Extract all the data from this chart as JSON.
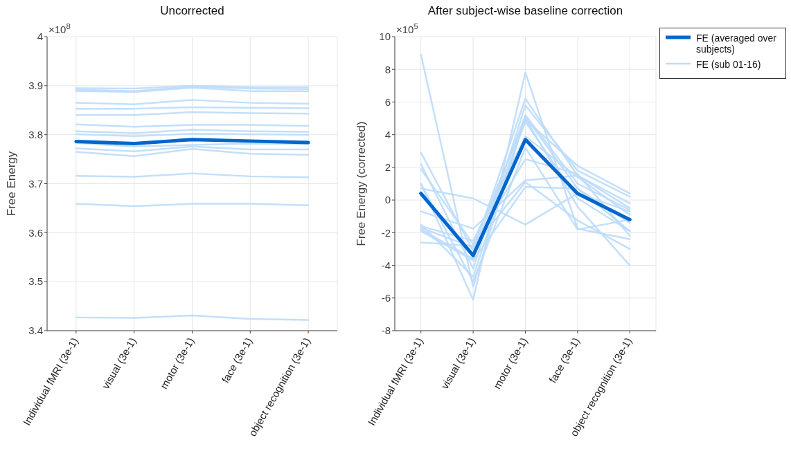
{
  "chart_data": [
    {
      "type": "line",
      "title": "Uncorrected",
      "ylabel": "Free Energy",
      "annotations": [
        "×10$^{8}$"
      ],
      "categories": [
        "Individual fMRI (3e-1)",
        "visual (3e-1)",
        "motor (3e-1)",
        "face (3e-1)",
        "object recognition (3e-1)"
      ],
      "ylim": [
        3.4,
        4
      ],
      "yticks": [
        3.4,
        3.5,
        3.6,
        3.7,
        3.8,
        3.9,
        4
      ],
      "grid": true,
      "series": [
        {
          "color": "#bcdcfa",
          "values": [
            3.895,
            3.894,
            3.9,
            3.897,
            3.897
          ]
        },
        {
          "color": "#bcdcfa",
          "values": [
            3.892,
            3.889,
            3.898,
            3.894,
            3.893
          ]
        },
        {
          "color": "#bcdcfa",
          "values": [
            3.889,
            3.887,
            3.896,
            3.889,
            3.889
          ]
        },
        {
          "color": "#bcdcfa",
          "values": [
            3.865,
            3.862,
            3.871,
            3.865,
            3.863
          ]
        },
        {
          "color": "#bcdcfa",
          "values": [
            3.853,
            3.853,
            3.856,
            3.855,
            3.854
          ]
        },
        {
          "color": "#bcdcfa",
          "values": [
            3.84,
            3.84,
            3.846,
            3.844,
            3.843
          ]
        },
        {
          "color": "#bcdcfa",
          "values": [
            3.821,
            3.816,
            3.82,
            3.82,
            3.818
          ]
        },
        {
          "color": "#bcdcfa",
          "values": [
            3.807,
            3.803,
            3.81,
            3.807,
            3.806
          ]
        },
        {
          "color": "#bcdcfa",
          "values": [
            3.801,
            3.797,
            3.802,
            3.801,
            3.8
          ]
        },
        {
          "color": "#bcdcfa",
          "values": [
            3.783,
            3.776,
            3.779,
            3.782,
            3.781
          ]
        },
        {
          "color": "#bcdcfa",
          "values": [
            3.772,
            3.766,
            3.776,
            3.77,
            3.77
          ]
        },
        {
          "color": "#bcdcfa",
          "values": [
            3.765,
            3.756,
            3.771,
            3.761,
            3.759
          ]
        },
        {
          "color": "#bcdcfa",
          "values": [
            3.716,
            3.714,
            3.721,
            3.715,
            3.713
          ]
        },
        {
          "color": "#bcdcfa",
          "values": [
            3.659,
            3.654,
            3.659,
            3.659,
            3.656
          ]
        },
        {
          "color": "#bcdcfa",
          "values": [
            3.427,
            3.426,
            3.431,
            3.424,
            3.422
          ]
        },
        {
          "color": "#0066cc",
          "values": [
            3.786,
            3.782,
            3.79,
            3.787,
            3.784
          ]
        }
      ]
    },
    {
      "type": "line",
      "title": "After subject-wise baseline correction",
      "ylabel": "Free Energy (corrected)",
      "annotations": [
        "×10$^{5}$"
      ],
      "categories": [
        "Individual fMRI (3e-1)",
        "visual (3e-1)",
        "motor (3e-1)",
        "face (3e-1)",
        "object recognition (3e-1)"
      ],
      "ylim": [
        -8,
        10
      ],
      "yticks": [
        -8,
        -6,
        -4,
        -2,
        0,
        2,
        4,
        6,
        8,
        10
      ],
      "grid": true,
      "legend": "right",
      "series": [
        {
          "name": "FE (sub 01-16)",
          "color": "#bcdcfa",
          "values": [
            8.9,
            -5.3,
            5.1,
            0.7,
            -1.9
          ]
        },
        {
          "color": "#bcdcfa",
          "values": [
            2.9,
            -3.1,
            6.2,
            1.5,
            -0.5
          ]
        },
        {
          "color": "#bcdcfa",
          "values": [
            2.2,
            -4.2,
            5.8,
            1.8,
            0.2
          ]
        },
        {
          "color": "#bcdcfa",
          "values": [
            1.9,
            -2.7,
            4.9,
            2.1,
            0.4
          ]
        },
        {
          "color": "#bcdcfa",
          "values": [
            1,
            -6.1,
            7.8,
            -1.75,
            -2.4
          ]
        },
        {
          "color": "#bcdcfa",
          "values": [
            0.7,
            0.1,
            -1.5,
            0.4,
            -0.7
          ]
        },
        {
          "color": "#bcdcfa",
          "values": [
            -0.7,
            -1.75,
            1.2,
            1.5,
            -0.2
          ]
        },
        {
          "color": "#bcdcfa",
          "values": [
            -1.6,
            -2.5,
            3.9,
            1.4,
            -0.9
          ]
        },
        {
          "color": "#bcdcfa",
          "values": [
            -1.7,
            -2.9,
            1.1,
            -1.25,
            -3
          ]
        },
        {
          "color": "#bcdcfa",
          "values": [
            -1.9,
            -3.7,
            0.8,
            0.7,
            -1.4
          ]
        },
        {
          "color": "#bcdcfa",
          "values": [
            -2.6,
            -2.8,
            2.5,
            1.6,
            -2.2
          ]
        },
        {
          "color": "#bcdcfa",
          "values": [
            -1.5,
            -4.7,
            5,
            -0.4,
            -4
          ]
        },
        {
          "color": "#bcdcfa",
          "values": [
            1,
            -5,
            3.2,
            -1.8,
            -1.2
          ]
        },
        {
          "color": "#bcdcfa",
          "values": [
            -1.8,
            -3.6,
            4.8,
            0.1,
            -1.9
          ]
        },
        {
          "color": "#bcdcfa",
          "values": [
            0.5,
            -3.3,
            5.2,
            1,
            -0.6
          ]
        },
        {
          "name": "FE (averaged over subjects)",
          "color": "#0066cc",
          "values": [
            0.4,
            -3.4,
            3.7,
            0.4,
            -1.2
          ]
        }
      ]
    }
  ]
}
